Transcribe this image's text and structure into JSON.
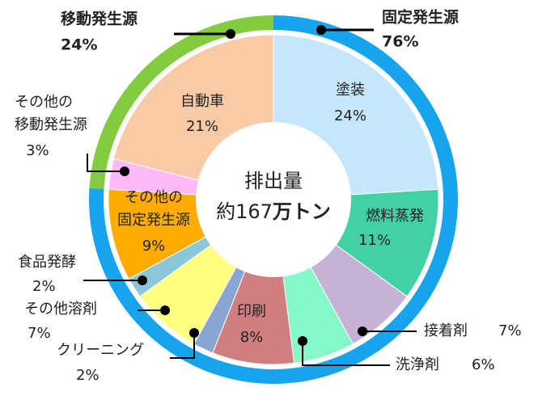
{
  "chart_data": {
    "type": "pie",
    "center_label": {
      "line1": "排出量",
      "line2_prefix": "約167",
      "line2_suffix": "万トン"
    },
    "outer_ring": [
      {
        "label": "移動発生源",
        "percent_text": "24%",
        "value": 24,
        "color": "#84cc3f"
      },
      {
        "label": "固定発生源",
        "percent_text": "76%",
        "value": 76,
        "color": "#16a4ec"
      }
    ],
    "slices": [
      {
        "group": "固定発生源",
        "label": "塗装",
        "percent_text": "24%",
        "value": 24,
        "color": "#c5e6fb"
      },
      {
        "group": "固定発生源",
        "label": "燃料蒸発",
        "percent_text": "11%",
        "value": 11,
        "color": "#41d1a5"
      },
      {
        "group": "固定発生源",
        "label": "接着剤",
        "percent_text": "7%",
        "value": 7,
        "color": "#c4b3d5"
      },
      {
        "group": "固定発生源",
        "label": "洗浄剤",
        "percent_text": "6%",
        "value": 6,
        "color": "#86f7c7"
      },
      {
        "group": "固定発生源",
        "label": "印刷",
        "percent_text": "8%",
        "value": 8,
        "color": "#cf7f7f"
      },
      {
        "group": "固定発生源",
        "label": "クリーニング",
        "percent_text": "2%",
        "value": 2,
        "color": "#8aa5d3"
      },
      {
        "group": "固定発生源",
        "label": "その他溶剤",
        "percent_text": "7%",
        "value": 7,
        "color": "#ffff80"
      },
      {
        "group": "固定発生源",
        "label": "食品発酵",
        "percent_text": "2%",
        "value": 2,
        "color": "#8cc6da"
      },
      {
        "group": "固定発生源",
        "label": "その他の固定発生源",
        "label_lines": [
          "その他の",
          "固定発生源"
        ],
        "percent_text": "9%",
        "value": 9,
        "color": "#ffab00"
      },
      {
        "group": "移動発生源",
        "label": "その他の移動発生源",
        "label_lines": [
          "その他の",
          "移動発生源"
        ],
        "percent_text": "3%",
        "value": 3,
        "color": "#ffb9f8"
      },
      {
        "group": "移動発生源",
        "label": "自動車",
        "percent_text": "21%",
        "value": 21,
        "color": "#f9caa6"
      }
    ]
  }
}
